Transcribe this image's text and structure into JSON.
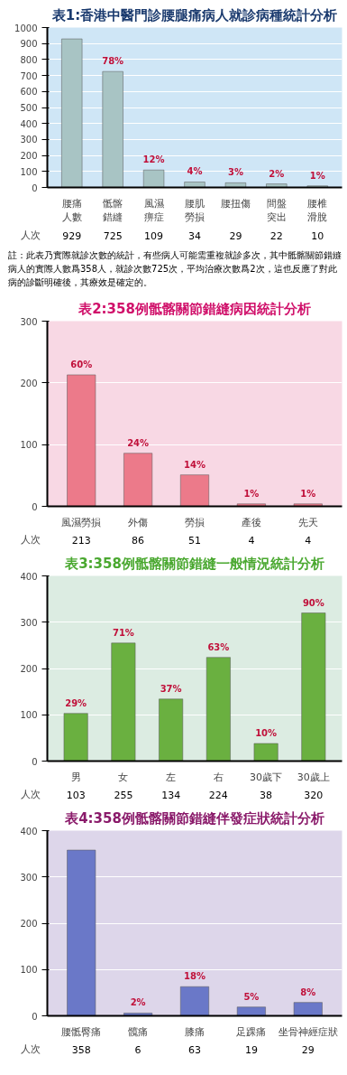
{
  "chart_data": [
    {
      "type": "bar",
      "title": "表1:香港中醫門診腰腿痛病人就診病種統計分析",
      "categories": [
        "腰痛人數",
        "骶髂錯縫",
        "風濕痹症",
        "腰肌勞損",
        "腰扭傷",
        "間盤突出",
        "腰椎滑脫"
      ],
      "values": [
        929,
        725,
        109,
        34,
        29,
        22,
        10
      ],
      "color": "#a8c4c4",
      "ylim": [
        0,
        1000
      ],
      "yticks": [
        0,
        100,
        200,
        300,
        400,
        500,
        600,
        700,
        800,
        900,
        1000
      ],
      "grid": "y",
      "data_labels": true,
      "annotations": [
        "人次",
        {
          "text": "78%",
          "x": "骶髂錯縫",
          "y": 725
        },
        {
          "text": "12%",
          "x": "風濕痹症",
          "y": 109
        },
        {
          "text": "4%",
          "x": "腰肌勞損",
          "y": 34
        },
        {
          "text": "3%",
          "x": "腰扭傷",
          "y": 29
        },
        {
          "text": "2%",
          "x": "間盤突出",
          "y": 22
        },
        {
          "text": "1%",
          "x": "腰椎滑脫",
          "y": 10
        },
        "註：此表乃實際就診次數的統計，有些病人可能需重複就診多次，其中骶髂關節錯縫病人的實際人數爲358人，就診次數725次，平均治療次數爲2次，這也反應了對此病的診斷明確後，其療效是確定的。"
      ]
    },
    {
      "type": "bar",
      "title": "表2:358例骶髂關節錯縫病因統計分析",
      "categories": [
        "風濕勞損",
        "外傷",
        "勞損",
        "產後",
        "先天"
      ],
      "values": [
        213,
        86,
        51,
        4,
        4
      ],
      "color": "#ec7a8a",
      "ylim": [
        0,
        300
      ],
      "yticks": [
        0,
        100,
        200,
        300
      ],
      "grid": "y",
      "data_labels": true,
      "annotations": [
        "人次",
        {
          "text": "60%",
          "x": "風濕勞損",
          "y": 213
        },
        {
          "text": "24%",
          "x": "外傷",
          "y": 86
        },
        {
          "text": "14%",
          "x": "勞損",
          "y": 51
        },
        {
          "text": "1%",
          "x": "產後",
          "y": 4
        },
        {
          "text": "1%",
          "x": "先天",
          "y": 4
        }
      ]
    },
    {
      "type": "bar",
      "title": "表3:358例骶髂關節錯縫一般情況統計分析",
      "categories": [
        "男",
        "女",
        "左",
        "右",
        "30歲下",
        "30歲上"
      ],
      "values": [
        103,
        255,
        134,
        224,
        38,
        320
      ],
      "color": "#6ab040",
      "ylim": [
        0,
        400
      ],
      "yticks": [
        0,
        100,
        200,
        300,
        400
      ],
      "grid": "y",
      "data_labels": true,
      "annotations": [
        "人次",
        {
          "text": "29%",
          "x": "男",
          "y": 103
        },
        {
          "text": "71%",
          "x": "女",
          "y": 255
        },
        {
          "text": "37%",
          "x": "左",
          "y": 134
        },
        {
          "text": "63%",
          "x": "右",
          "y": 224
        },
        {
          "text": "10%",
          "x": "30歲下",
          "y": 38
        },
        {
          "text": "90%",
          "x": "30歲上",
          "y": 320
        }
      ]
    },
    {
      "type": "bar",
      "title": "表4:358例骶髂關節錯縫伴發症狀統計分析",
      "categories": [
        "腰骶臀痛",
        "髖痛",
        "膝痛",
        "足踝痛",
        "坐骨神經症狀"
      ],
      "values": [
        358,
        6,
        63,
        19,
        29
      ],
      "color": "#6a78c8",
      "ylim": [
        0,
        400
      ],
      "yticks": [
        0,
        100,
        200,
        300,
        400
      ],
      "grid": "y",
      "data_labels": true,
      "annotations": [
        "人次",
        {
          "text": "2%",
          "x": "髖痛",
          "y": 6
        },
        {
          "text": "18%",
          "x": "膝痛",
          "y": 63
        },
        {
          "text": "5%",
          "x": "足踝痛",
          "y": 19
        },
        {
          "text": "8%",
          "x": "坐骨神經症狀",
          "y": 29
        }
      ]
    }
  ]
}
